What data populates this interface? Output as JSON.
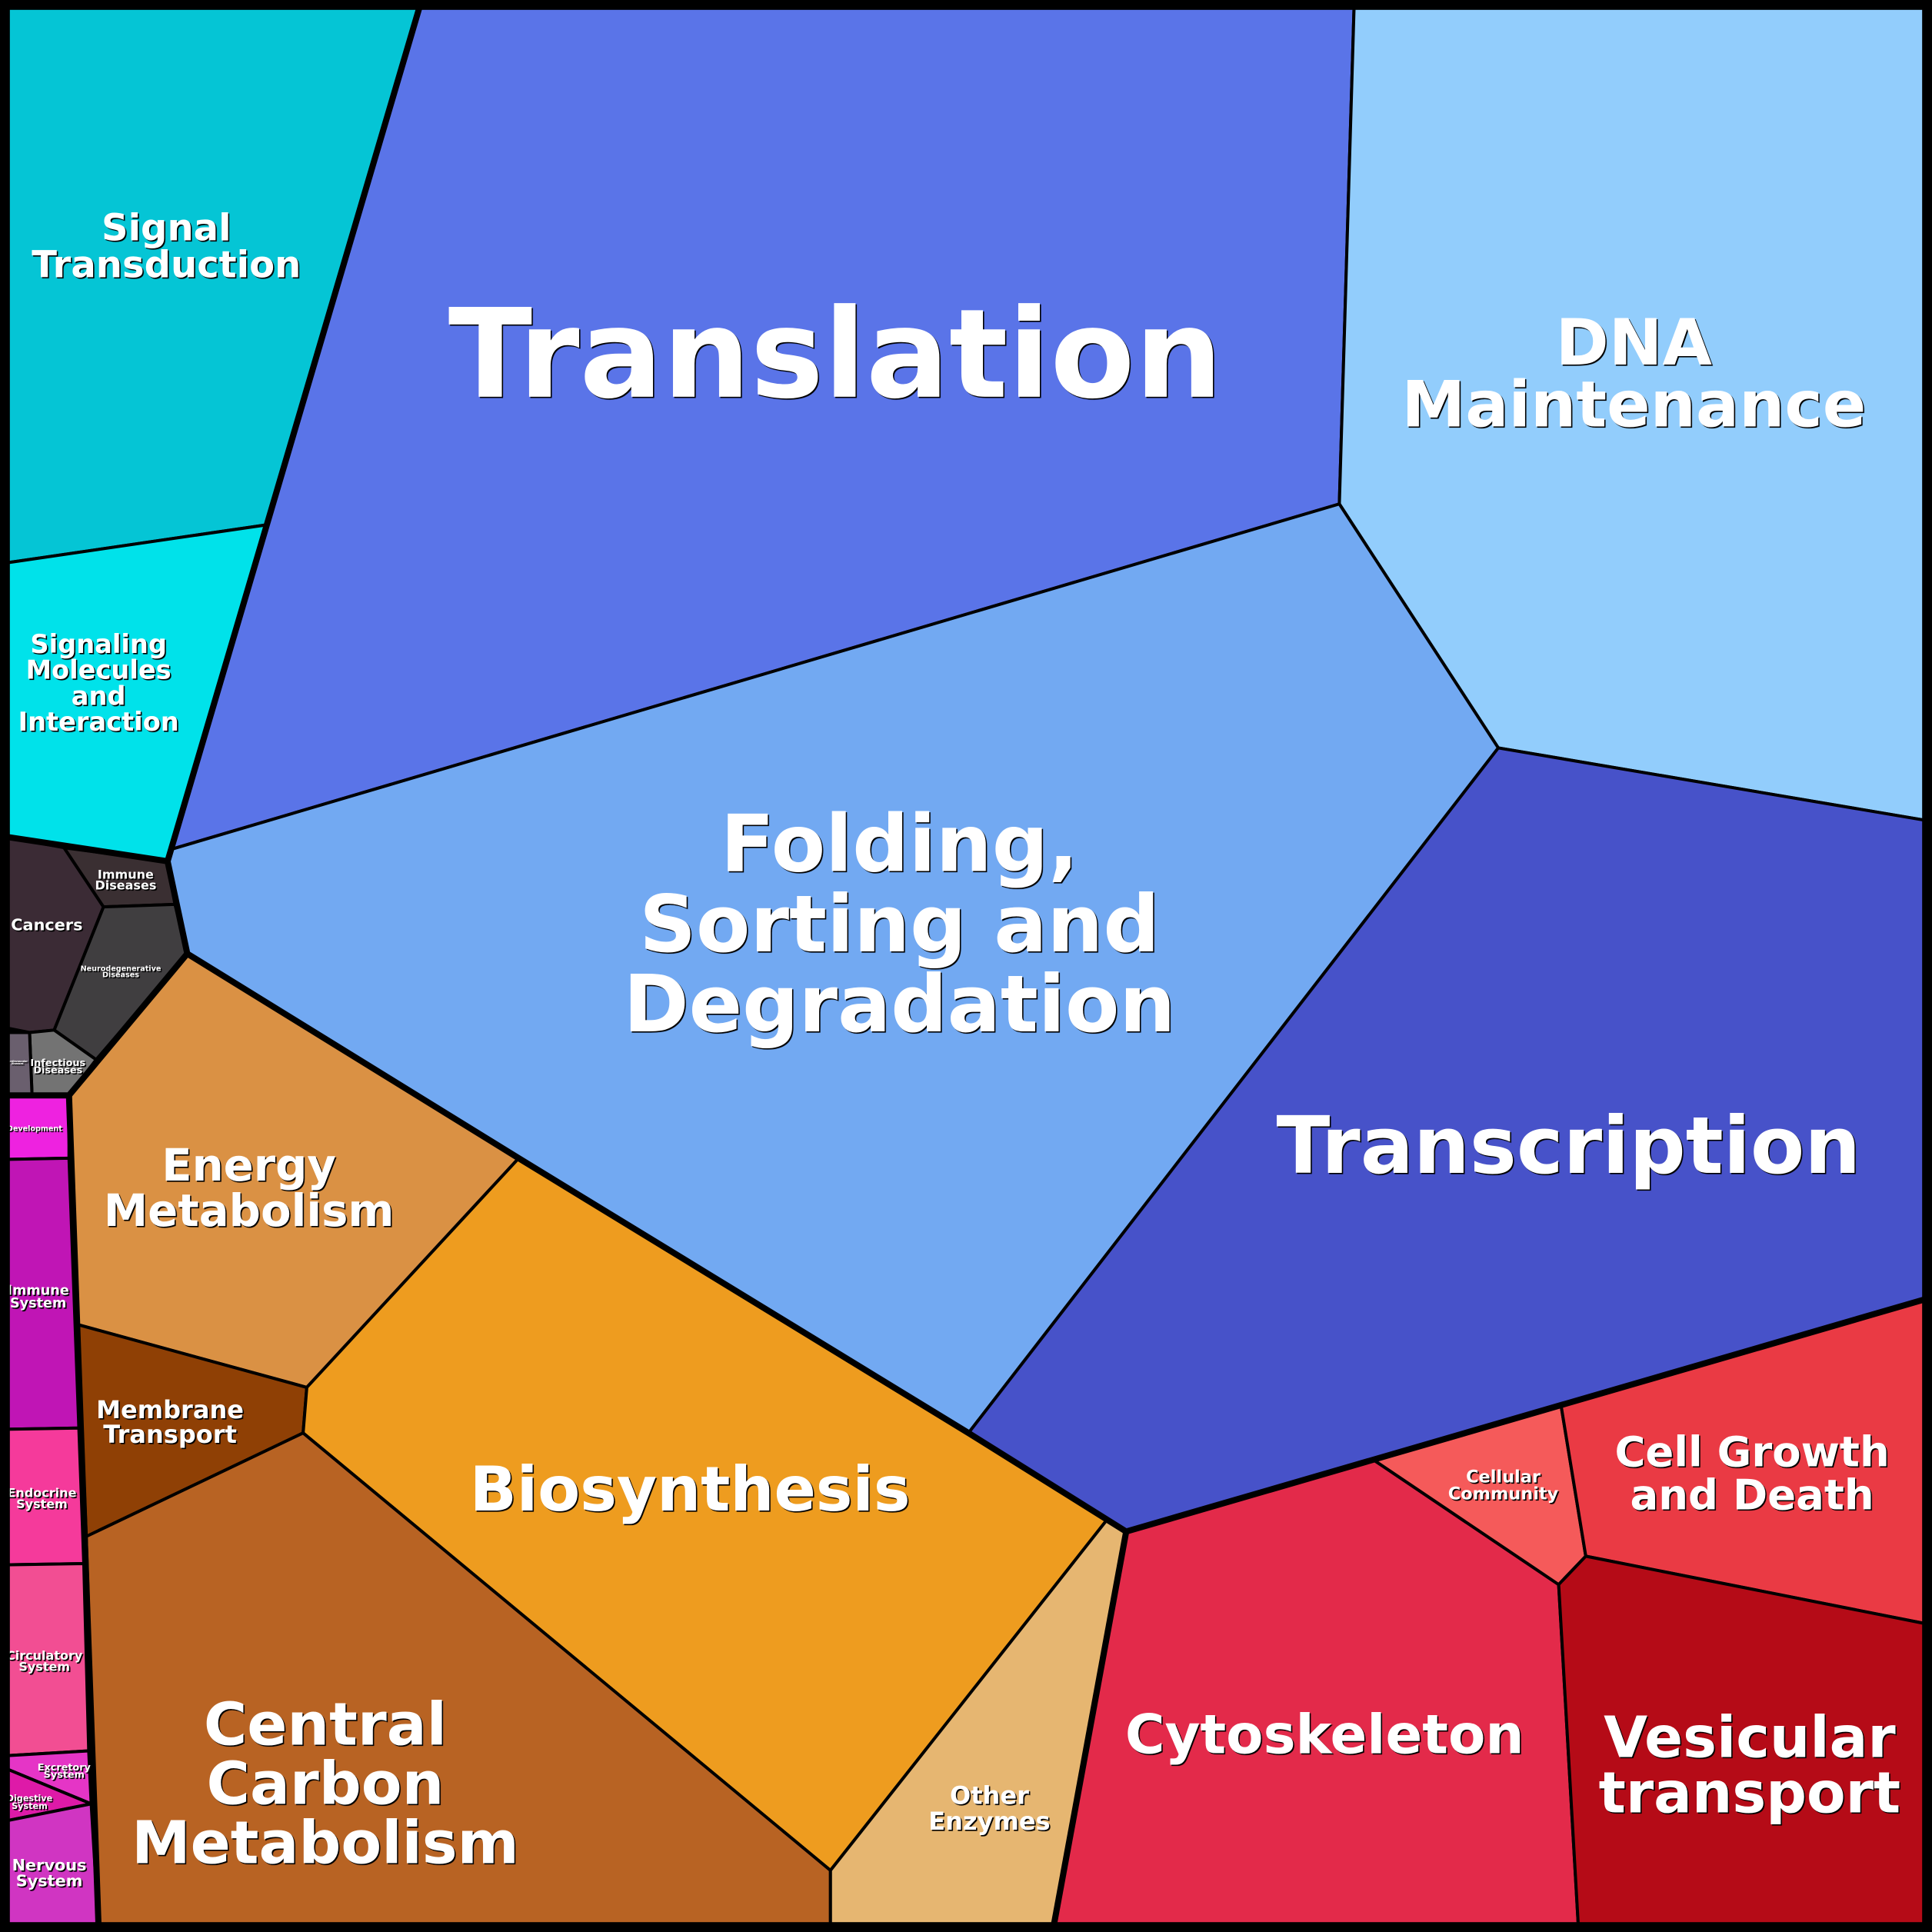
{
  "chart_data": {
    "type": "voronoi-treemap",
    "cells": [
      {
        "id": "signal-transduction",
        "label": [
          "Signal",
          "Transduction"
        ],
        "color": "#05c5d5"
      },
      {
        "id": "signaling-molecules",
        "label": [
          "Signaling",
          "Molecules",
          "and",
          "Interaction"
        ],
        "color": "#00e2ea"
      },
      {
        "id": "translation",
        "label": [
          "Translation"
        ],
        "color": "#5a74e8"
      },
      {
        "id": "dna-maintenance",
        "label": [
          "DNA",
          "Maintenance"
        ],
        "color": "#92cdfc"
      },
      {
        "id": "folding-sorting-degradation",
        "label": [
          "Folding,",
          "Sorting and",
          "Degradation"
        ],
        "color": "#72a9f2"
      },
      {
        "id": "transcription",
        "label": [
          "Transcription"
        ],
        "color": "#4752c9"
      },
      {
        "id": "cancers",
        "label": [
          "Cancers"
        ],
        "color": "#3b2b35"
      },
      {
        "id": "immune-diseases",
        "label": [
          "Immune",
          "Diseases"
        ],
        "color": "#3a2f32"
      },
      {
        "id": "neurodegenerative-diseases",
        "label": [
          "Neurodegenerative",
          "Diseases"
        ],
        "color": "#403e40"
      },
      {
        "id": "infectious-diseases",
        "label": [
          "Infectious",
          "Diseases"
        ],
        "color": "#737373"
      },
      {
        "id": "cardiovascular-diseases",
        "label": [
          "Cardiovascular",
          "Diseases"
        ],
        "color": "#6a5f6e"
      },
      {
        "id": "energy-metabolism",
        "label": [
          "Energy",
          "Metabolism"
        ],
        "color": "#da9144"
      },
      {
        "id": "membrane-transport",
        "label": [
          "Membrane",
          "Transport"
        ],
        "color": "#8f4005"
      },
      {
        "id": "biosynthesis",
        "label": [
          "Biosynthesis"
        ],
        "color": "#ee9c1f"
      },
      {
        "id": "central-carbon-metabolism",
        "label": [
          "Central",
          "Carbon",
          "Metabolism"
        ],
        "color": "#b86323"
      },
      {
        "id": "other-enzymes",
        "label": [
          "Other",
          "Enzymes"
        ],
        "color": "#e6b671"
      },
      {
        "id": "cytoskeleton",
        "label": [
          "Cytoskeleton"
        ],
        "color": "#e32a4a"
      },
      {
        "id": "cellular-community",
        "label": [
          "Cellular",
          "Community"
        ],
        "color": "#f55a5a"
      },
      {
        "id": "cell-growth-and-death",
        "label": [
          "Cell Growth",
          "and Death"
        ],
        "color": "#ea3a44"
      },
      {
        "id": "vesicular-transport",
        "label": [
          "Vesicular",
          "transport"
        ],
        "color": "#b50b17"
      },
      {
        "id": "development",
        "label": [
          "Development"
        ],
        "color": "#ee22e0"
      },
      {
        "id": "immune-system",
        "label": [
          "Immune",
          "System"
        ],
        "color": "#c015b5"
      },
      {
        "id": "endocrine-system",
        "label": [
          "Endocrine",
          "System"
        ],
        "color": "#f53a9b"
      },
      {
        "id": "circulatory-system",
        "label": [
          "Circulatory",
          "System"
        ],
        "color": "#f24e93"
      },
      {
        "id": "excretory-system",
        "label": [
          "Excretory",
          "System"
        ],
        "color": "#e535c6"
      },
      {
        "id": "digestive-system",
        "label": [
          "Digestive",
          "System"
        ],
        "color": "#de1aa8"
      },
      {
        "id": "nervous-system",
        "label": [
          "Nervous",
          "System"
        ],
        "color": "#d035c2"
      }
    ]
  }
}
